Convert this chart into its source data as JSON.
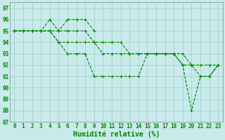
{
  "background_color": "#c8eaea",
  "grid_color": "#aad4d4",
  "line_color": "#008800",
  "xlabel": "Humidité relative (%)",
  "xlim": [
    -0.5,
    23.5
  ],
  "ylim": [
    87,
    97.5
  ],
  "yticks": [
    87,
    88,
    89,
    90,
    91,
    92,
    93,
    94,
    95,
    96,
    97
  ],
  "xticks": [
    0,
    1,
    2,
    3,
    4,
    5,
    6,
    7,
    8,
    9,
    10,
    11,
    12,
    13,
    14,
    15,
    16,
    17,
    18,
    19,
    20,
    21,
    22,
    23
  ],
  "lines": [
    {
      "x": [
        0,
        1,
        2,
        3,
        4,
        5,
        6,
        7,
        8,
        9
      ],
      "y": [
        95,
        95,
        95,
        95,
        96,
        95,
        96,
        96,
        96,
        95
      ]
    },
    {
      "x": [
        0,
        1,
        2,
        3,
        4,
        5,
        6,
        7,
        8,
        9,
        10,
        11,
        12,
        13,
        14,
        15,
        16,
        17,
        18,
        19,
        20,
        21,
        22,
        23
      ],
      "y": [
        95,
        95,
        95,
        95,
        95,
        94,
        94,
        94,
        94,
        94,
        93,
        93,
        93,
        93,
        93,
        93,
        93,
        93,
        93,
        93,
        92,
        91,
        91,
        92
      ]
    },
    {
      "x": [
        0,
        1,
        2,
        3,
        4,
        5,
        6,
        7,
        8,
        9,
        10,
        11,
        12,
        13,
        14,
        15,
        16,
        17,
        18,
        19,
        20,
        21,
        22,
        23
      ],
      "y": [
        95,
        95,
        95,
        95,
        95,
        95,
        95,
        95,
        95,
        94,
        94,
        94,
        94,
        93,
        93,
        93,
        93,
        93,
        93,
        92,
        92,
        92,
        92,
        92
      ]
    },
    {
      "x": [
        0,
        1,
        2,
        3,
        4,
        5,
        6,
        7,
        8,
        9,
        10,
        11,
        12,
        13,
        14,
        15,
        16,
        17,
        18,
        19,
        20,
        21,
        22,
        23
      ],
      "y": [
        95,
        95,
        95,
        95,
        95,
        94,
        93,
        93,
        93,
        91,
        91,
        91,
        91,
        91,
        91,
        93,
        93,
        93,
        93,
        92,
        88,
        91,
        91,
        92
      ]
    }
  ],
  "figsize": [
    3.2,
    2.0
  ],
  "dpi": 100,
  "tick_fontsize": 5.5,
  "xlabel_fontsize": 7
}
